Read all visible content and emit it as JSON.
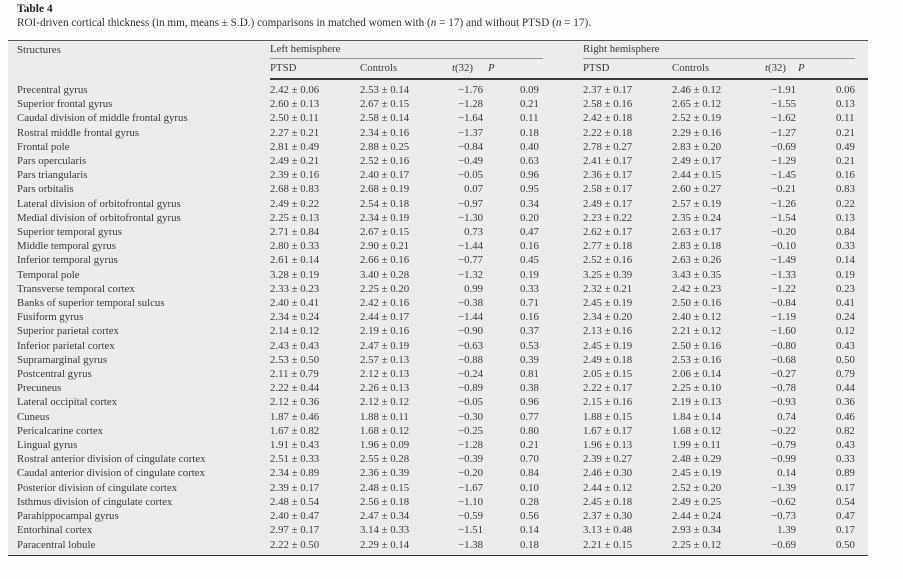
{
  "page": {
    "table_label": "Table 4",
    "caption_part1": "ROI-driven cortical thickness (in mm, means ± S.D.) comparisons in matched women with (",
    "caption_n": "n",
    "caption_part2": " = 17) and without PTSD (",
    "caption_part3": " = 17)."
  },
  "colors": {
    "tableBg": "#ececea",
    "ruleMid": "#55555a",
    "ruleLight": "#98989a",
    "ruleDark": "#37373a",
    "text": "#3a3a3a"
  },
  "table": {
    "col_structures": "Structures",
    "left_hemisphere": "Left hemisphere",
    "right_hemisphere": "Right hemisphere",
    "sub_ptsd": "PTSD",
    "sub_controls": "Controls",
    "sub_t_italic": "t",
    "sub_t_rest": "(32)",
    "sub_p": "P",
    "columns": [
      "Structures",
      "Left PTSD",
      "Left Controls",
      "Left t(32)",
      "Left P",
      "Right PTSD",
      "Right Controls",
      "Right t(32)",
      "Right P"
    ],
    "rows": [
      [
        "Precentral gyrus",
        "2.42 ± 0.06",
        "2.53 ± 0.14",
        "−1.76",
        "0.09",
        "2.37 ± 0.17",
        "2.46 ± 0.12",
        "−1.91",
        "0.06"
      ],
      [
        "Superior frontal gyrus",
        "2.60 ± 0.13",
        "2.67 ± 0.15",
        "−1.28",
        "0.21",
        "2.58 ± 0.16",
        "2.65 ± 0.12",
        "−1.55",
        "0.13"
      ],
      [
        "Caudal division of middle frontal gyrus",
        "2.50 ± 0.11",
        "2.58 ± 0.14",
        "−1.64",
        "0.11",
        "2.42 ± 0.18",
        "2.52 ± 0.19",
        "−1.62",
        "0.11"
      ],
      [
        "Rostral middle frontal gyrus",
        "2.27 ± 0.21",
        "2.34 ± 0.16",
        "−1.37",
        "0.18",
        "2.22 ± 0.18",
        "2.29 ± 0.16",
        "−1.27",
        "0.21"
      ],
      [
        "Frontal pole",
        "2.81 ± 0.49",
        "2.88 ± 0.25",
        "−0.84",
        "0.40",
        "2.78 ± 0.27",
        "2.83 ± 0.20",
        "−0.69",
        "0.49"
      ],
      [
        "Pars opercularis",
        "2.49 ± 0.21",
        "2.52 ± 0.16",
        "−0.49",
        "0.63",
        "2.41 ± 0.17",
        "2.49 ± 0.17",
        "−1.29",
        "0.21"
      ],
      [
        "Pars triangularis",
        "2.39 ± 0.16",
        "2.40 ± 0.17",
        "−0.05",
        "0.96",
        "2.36 ± 0.17",
        "2.44 ± 0.15",
        "−1.45",
        "0.16"
      ],
      [
        "Pars orbitalis",
        "2.68 ± 0.83",
        "2.68 ± 0.19",
        "0.07",
        "0.95",
        "2.58 ± 0.17",
        "2.60 ± 0.27",
        "−0.21",
        "0.83"
      ],
      [
        "Lateral division of orbitofrontal gyrus",
        "2.49 ± 0.22",
        "2.54 ± 0.18",
        "−0.97",
        "0.34",
        "2.49 ± 0.17",
        "2.57 ± 0.19",
        "−1.26",
        "0.22"
      ],
      [
        "Medial division of orbitofrontal gyrus",
        "2.25 ± 0.13",
        "2.34 ± 0.19",
        "−1.30",
        "0.20",
        "2.23 ± 0.22",
        "2.35 ± 0.24",
        "−1.54",
        "0.13"
      ],
      [
        "Superior temporal gyrus",
        "2.71 ± 0.84",
        "2.67 ± 0.15",
        "0.73",
        "0.47",
        "2.62 ± 0.17",
        "2.63 ± 0.17",
        "−0.20",
        "0.84"
      ],
      [
        "Middle temporal gyrus",
        "2.80 ± 0.33",
        "2.90 ± 0.21",
        "−1.44",
        "0.16",
        "2.77 ± 0.18",
        "2.83 ± 0.18",
        "−0.10",
        "0.33"
      ],
      [
        "Inferior temporal gyrus",
        "2.61 ± 0.14",
        "2.66 ± 0.16",
        "−0.77",
        "0.45",
        "2.52 ± 0.16",
        "2.63 ± 0.26",
        "−1.49",
        "0.14"
      ],
      [
        "Temporal pole",
        "3.28 ± 0.19",
        "3.40 ± 0.28",
        "−1.32",
        "0.19",
        "3.25 ± 0.39",
        "3.43 ± 0.35",
        "−1.33",
        "0.19"
      ],
      [
        "Transverse temporal cortex",
        "2.33 ± 0.23",
        "2.25 ± 0.20",
        "0.99",
        "0.33",
        "2.32 ± 0.21",
        "2.42 ± 0.23",
        "−1.22",
        "0.23"
      ],
      [
        "Banks of superior temporal sulcus",
        "2.40 ± 0.41",
        "2.42 ± 0.16",
        "−0.38",
        "0.71",
        "2.45 ± 0.19",
        "2.50 ± 0.16",
        "−0.84",
        "0.41"
      ],
      [
        "Fusiform gyrus",
        "2.34 ± 0.24",
        "2.44 ± 0.17",
        "−1.44",
        "0.16",
        "2.34 ± 0.20",
        "2.40 ± 0.12",
        "−1.19",
        "0.24"
      ],
      [
        "Superior parietal cortex",
        "2.14 ± 0.12",
        "2.19 ± 0.16",
        "−0.90",
        "0.37",
        "2.13 ± 0.16",
        "2.21 ± 0.12",
        "−1.60",
        "0.12"
      ],
      [
        "Inferior parietal cortex",
        "2.43 ± 0.43",
        "2.47 ± 0.19",
        "−0.63",
        "0.53",
        "2.45 ± 0.19",
        "2.50 ± 0.16",
        "−0.80",
        "0.43"
      ],
      [
        "Supramarginal gyrus",
        "2.53 ± 0.50",
        "2.57 ± 0.13",
        "−0.88",
        "0.39",
        "2.49 ± 0.18",
        "2.53 ± 0.16",
        "−0.68",
        "0.50"
      ],
      [
        "Postcentral gyrus",
        "2.11 ± 0.79",
        "2.12 ± 0.13",
        "−0.24",
        "0.81",
        "2.05 ± 0.15",
        "2.06 ± 0.14",
        "−0.27",
        "0.79"
      ],
      [
        "Precuneus",
        "2.22 ± 0.44",
        "2.26 ± 0.13",
        "−0.89",
        "0.38",
        "2.22 ± 0.17",
        "2.25 ± 0.10",
        "−0.78",
        "0.44"
      ],
      [
        "Lateral occipital cortex",
        "2.12 ± 0.36",
        "2.12 ± 0.12",
        "−0.05",
        "0.96",
        "2.15 ± 0.16",
        "2.19 ± 0.13",
        "−0.93",
        "0.36"
      ],
      [
        "Cuneus",
        "1.87 ± 0.46",
        "1.88 ± 0.11",
        "−0.30",
        "0.77",
        "1.88 ± 0.15",
        "1.84 ± 0.14",
        "0.74",
        "0.46"
      ],
      [
        "Pericalcarine cortex",
        "1.67 ± 0.82",
        "1.68 ± 0.12",
        "−0.25",
        "0.80",
        "1.67 ± 0.17",
        "1.68 ± 0.12",
        "−0.22",
        "0.82"
      ],
      [
        "Lingual gyrus",
        "1.91 ± 0.43",
        "1.96 ± 0.09",
        "−1.28",
        "0.21",
        "1.96 ± 0.13",
        "1.99 ± 0.11",
        "−0.79",
        "0.43"
      ],
      [
        "Rostral anterior division of cingulate cortex",
        "2.51 ± 0.33",
        "2.55 ± 0.28",
        "−0.39",
        "0.70",
        "2.39 ± 0.27",
        "2.48 ± 0.29",
        "−0.99",
        "0.33"
      ],
      [
        "Caudal anterior division of cingulate cortex",
        "2.34 ± 0.89",
        "2.36 ± 0.39",
        "−0.20",
        "0.84",
        "2.46 ± 0.30",
        "2.45 ± 0.19",
        "0.14",
        "0.89"
      ],
      [
        "Posterior division of cingulate cortex",
        "2.39 ± 0.17",
        "2.48 ± 0.15",
        "−1.67",
        "0.10",
        "2.44 ± 0.12",
        "2.52 ± 0.20",
        "−1.39",
        "0.17"
      ],
      [
        "Isthmus division of cingulate cortex",
        "2.48 ± 0.54",
        "2.56 ± 0.18",
        "−1.10",
        "0.28",
        "2.45 ± 0.18",
        "2.49 ± 0.25",
        "−0.62",
        "0.54"
      ],
      [
        "Parahippocampal gyrus",
        "2.40 ± 0.47",
        "2.47 ± 0.34",
        "−0.59",
        "0.56",
        "2.37 ± 0.30",
        "2.44 ± 0.24",
        "−0.73",
        "0.47"
      ],
      [
        "Entorhinal cortex",
        "2.97 ± 0.17",
        "3.14 ± 0.33",
        "−1.51",
        "0.14",
        "3.13 ± 0.48",
        "2.93 ± 0.34",
        "1.39",
        "0.17"
      ],
      [
        "Paracentral lobule",
        "2.22 ± 0.50",
        "2.29 ± 0.14",
        "−1.38",
        "0.18",
        "2.21 ± 0.15",
        "2.25 ± 0.12",
        "−0.69",
        "0.50"
      ]
    ]
  }
}
